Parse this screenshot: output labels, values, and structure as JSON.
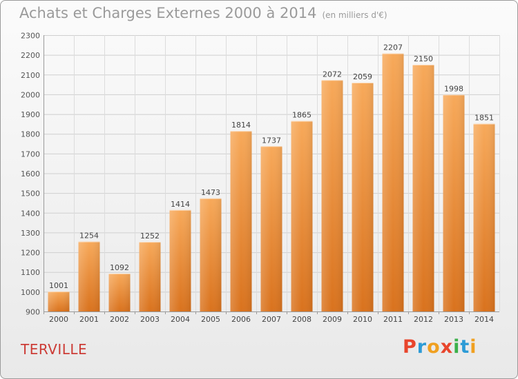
{
  "header": {
    "title": "Achats et Charges Externes 2000 à 2014",
    "subtitle": "(en milliers d'€)"
  },
  "footer": {
    "city": "TERVILLE",
    "logo": "Proxiti",
    "logo_colors": [
      "#e8452c",
      "#2d9bd6",
      "#f0a020",
      "#e8452c",
      "#3bb04a",
      "#2d9bd6",
      "#f0a020"
    ]
  },
  "chart_data": {
    "type": "bar",
    "title": "Achats et Charges Externes 2000 à 2014",
    "subtitle": "(en milliers d'€)",
    "categories": [
      "2000",
      "2001",
      "2002",
      "2003",
      "2004",
      "2005",
      "2006",
      "2007",
      "2008",
      "2009",
      "2010",
      "2011",
      "2012",
      "2013",
      "2014"
    ],
    "values": [
      1001,
      1254,
      1092,
      1252,
      1414,
      1473,
      1814,
      1737,
      1865,
      2072,
      2059,
      2207,
      2150,
      1998,
      1851
    ],
    "ylim": [
      900,
      2300
    ],
    "yticks": [
      900,
      1000,
      1100,
      1200,
      1300,
      1400,
      1500,
      1600,
      1700,
      1800,
      1900,
      2000,
      2100,
      2200,
      2300
    ],
    "grid": true,
    "bar_color_top": "#f7a95a",
    "bar_color_bottom": "#d9721d"
  }
}
